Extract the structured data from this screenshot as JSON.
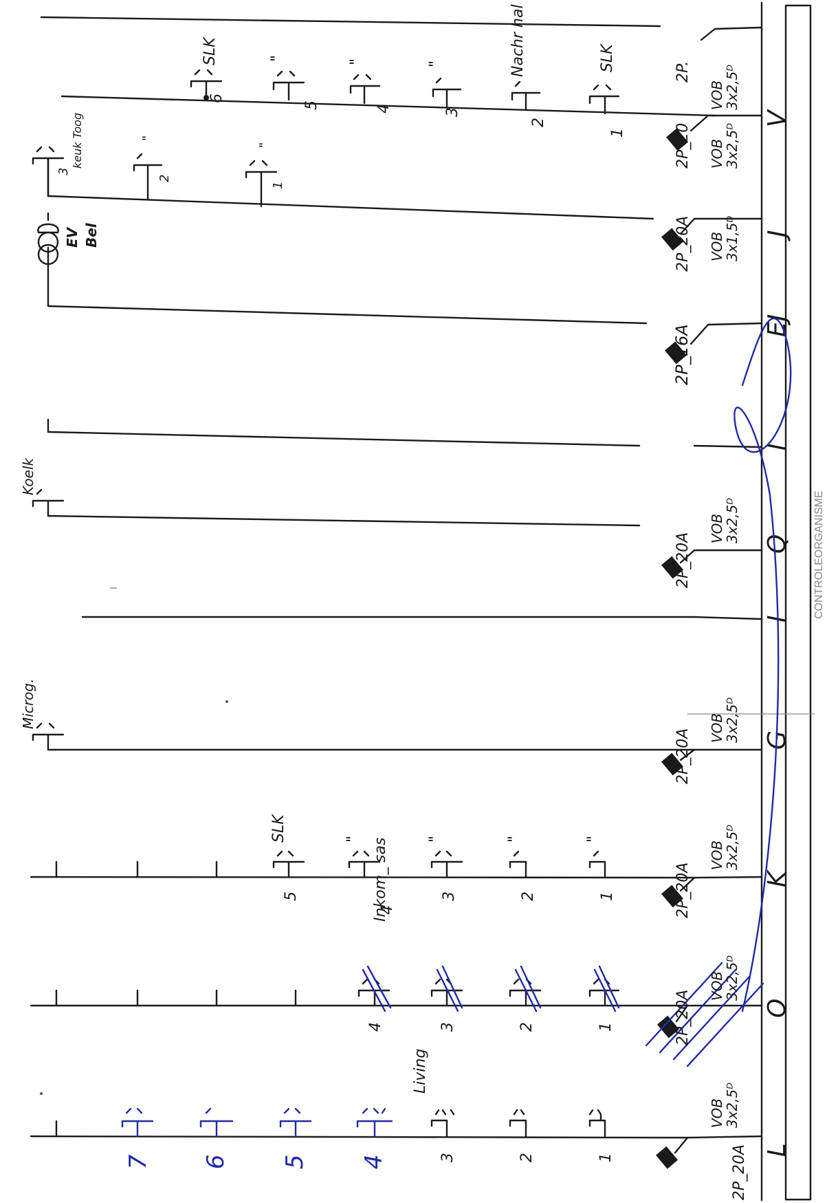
{
  "bus": {
    "letters": [
      "L",
      "O",
      "K",
      "G",
      "I",
      "Q",
      "I",
      "EJ",
      "J",
      "V"
    ],
    "stamp": "CONTROLEORGANISME"
  },
  "colors": {
    "ink": "#1a1a1a",
    "blue_pen": "#1f2aa6"
  },
  "circuits": [
    {
      "id": "L",
      "breaker": "2P_20A",
      "cable": [
        "VOB",
        "3x2,5ᴰ"
      ],
      "label": "Living",
      "points": [
        {
          "num": "1",
          "symbol": "outlet-double"
        },
        {
          "num": "2",
          "symbol": "outlet-double"
        },
        {
          "num": "3",
          "symbol": "outlet-triple"
        },
        {
          "num": "4",
          "symbol": "outlet-triple",
          "ink": "blue"
        },
        {
          "num": "5",
          "symbol": "outlet-double",
          "ink": "blue"
        },
        {
          "num": "6",
          "symbol": "outlet-single",
          "ink": "blue"
        },
        {
          "num": "7",
          "symbol": "outlet-double",
          "ink": "blue"
        }
      ]
    },
    {
      "id": "O",
      "breaker": "2P_20A",
      "cable": [
        "VOB",
        "3x2,5ᴰ"
      ],
      "label": "",
      "crossed_out": true,
      "points": [
        {
          "num": "1",
          "symbol": "outlet-double"
        },
        {
          "num": "2",
          "symbol": "outlet-double"
        },
        {
          "num": "3",
          "symbol": "outlet-double"
        },
        {
          "num": "4",
          "symbol": "outlet-double"
        }
      ]
    },
    {
      "id": "K",
      "breaker": "2P_20A",
      "cable": [
        "VOB",
        "3x2,5ᴰ"
      ],
      "label": "Inkom_ sas",
      "points": [
        {
          "num": "1",
          "note": "\""
        },
        {
          "num": "2",
          "note": "\""
        },
        {
          "num": "3",
          "note": "\""
        },
        {
          "num": "4",
          "note": "\""
        },
        {
          "num": "5",
          "note": "SLK"
        }
      ]
    },
    {
      "id": "G",
      "breaker": "2P_20A",
      "cable": [
        "VOB",
        "3x2,5ᴰ"
      ],
      "label": "Microg."
    },
    {
      "id": "I",
      "breaker": "",
      "cable": [],
      "label": ""
    },
    {
      "id": "Q",
      "breaker": "2P_20A",
      "cable": [
        "VOB",
        "3x2,5ᴰ"
      ],
      "label": "Koelk"
    },
    {
      "id": "I",
      "breaker": "",
      "cable": [],
      "label": ""
    },
    {
      "id": "EJ",
      "breaker": "2P_16A",
      "cable": [],
      "label": ""
    },
    {
      "id": "J",
      "breaker": "2P_20A",
      "cable": [
        "VOB",
        "3x1,5ᴰ"
      ],
      "label": "",
      "device": [
        "EV",
        "Bel"
      ]
    },
    {
      "id": "V",
      "breaker": "2P_20",
      "cable": [
        "VOB",
        "3x2,5ᴰ"
      ],
      "label": "keuk Toog",
      "points": [
        {
          "num": "1",
          "note": "\""
        },
        {
          "num": "2",
          "note": "\""
        },
        {
          "num": "3",
          "note": ""
        }
      ]
    },
    {
      "id": "",
      "breaker": "2P.",
      "cable": [
        "VOB",
        "3x2,5ᴰ"
      ],
      "label": "",
      "points": [
        {
          "num": "1",
          "note": "SLK"
        },
        {
          "num": "2",
          "note": "Nachr hal"
        },
        {
          "num": "3",
          "note": "\""
        },
        {
          "num": "4",
          "note": "\""
        },
        {
          "num": "5",
          "note": "\""
        },
        {
          "num": "6",
          "note": "SLK"
        }
      ]
    }
  ]
}
